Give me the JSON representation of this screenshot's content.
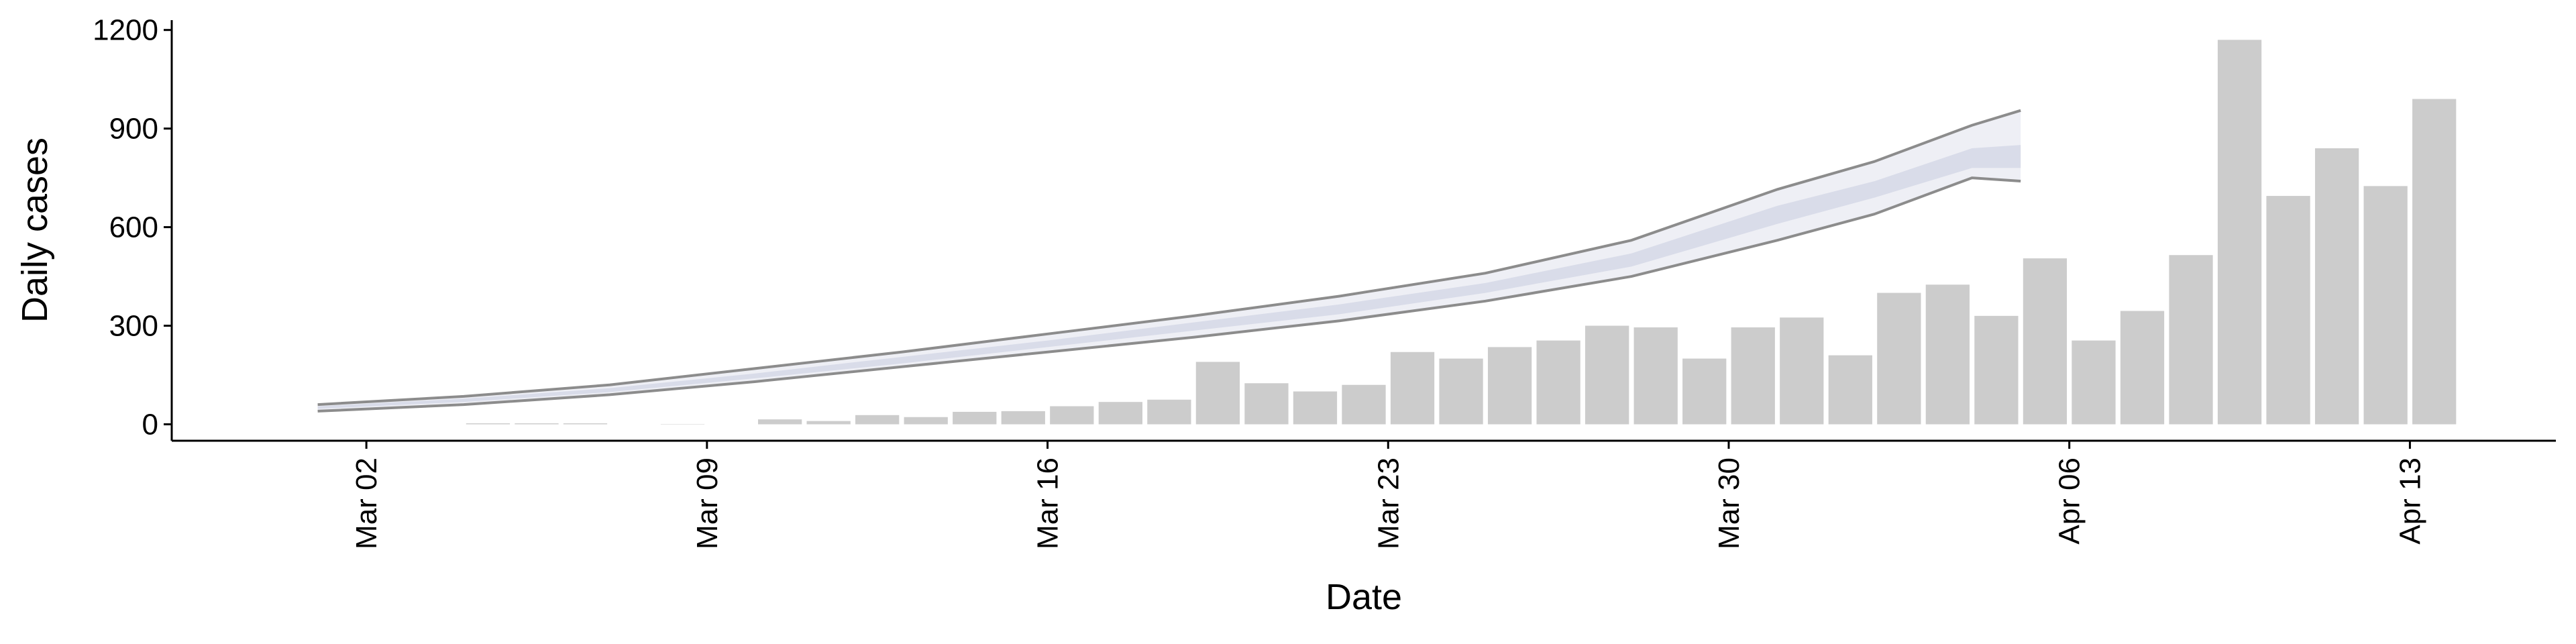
{
  "chart_data": {
    "type": "bar",
    "x_label": "Date",
    "y_label": "Daily cases",
    "categories": [
      "Mar 04",
      "Mar 05",
      "Mar 06",
      "Mar 07",
      "Mar 08",
      "Mar 09",
      "Mar 10",
      "Mar 11",
      "Mar 12",
      "Mar 13",
      "Mar 14",
      "Mar 15",
      "Mar 16",
      "Mar 17",
      "Mar 18",
      "Mar 19",
      "Mar 20",
      "Mar 21",
      "Mar 22",
      "Mar 23",
      "Mar 24",
      "Mar 25",
      "Mar 26",
      "Mar 27",
      "Mar 28",
      "Mar 29",
      "Mar 30",
      "Mar 31",
      "Apr 01",
      "Apr 02",
      "Apr 03",
      "Apr 04",
      "Apr 05",
      "Apr 06",
      "Apr 07",
      "Apr 08",
      "Apr 09",
      "Apr 10",
      "Apr 11",
      "Apr 12",
      "Apr 13"
    ],
    "values": [
      3,
      3,
      3,
      0,
      1,
      0,
      15,
      10,
      28,
      22,
      38,
      40,
      55,
      68,
      75,
      190,
      125,
      100,
      120,
      220,
      200,
      235,
      255,
      300,
      295,
      200,
      295,
      325,
      210,
      400,
      425,
      330,
      505,
      255,
      345,
      515,
      1170,
      695,
      840,
      725,
      990
    ],
    "color": "#cccccc",
    "band": {
      "x": [
        "Mar 01",
        "Mar 04",
        "Mar 07",
        "Mar 10",
        "Mar 13",
        "Mar 16",
        "Mar 19",
        "Mar 22",
        "Mar 25",
        "Mar 28",
        "Mar 31",
        "Apr 02",
        "Apr 04",
        "Apr 05"
      ],
      "upper": [
        60,
        85,
        120,
        170,
        220,
        275,
        330,
        390,
        460,
        560,
        715,
        800,
        910,
        955
      ],
      "inner_upper": [
        55,
        78,
        110,
        155,
        205,
        255,
        310,
        365,
        430,
        520,
        665,
        740,
        840,
        850
      ],
      "inner_lower": [
        47,
        68,
        98,
        140,
        185,
        235,
        285,
        335,
        400,
        480,
        610,
        690,
        780,
        780
      ],
      "lower": [
        40,
        60,
        90,
        130,
        175,
        220,
        265,
        315,
        375,
        450,
        560,
        640,
        750,
        740
      ],
      "outer_color": "#eeeff5",
      "inner_color": "#d9dce9",
      "line_color": "#8c8c8c"
    },
    "xlim": [
      "Feb 27",
      "Apr 16"
    ],
    "xticks": [
      "Mar 02",
      "Mar 09",
      "Mar 16",
      "Mar 23",
      "Mar 30",
      "Apr 06",
      "Apr 13"
    ],
    "ylim": [
      -50,
      1230
    ],
    "yticks": [
      0,
      300,
      600,
      900,
      1200
    ]
  }
}
